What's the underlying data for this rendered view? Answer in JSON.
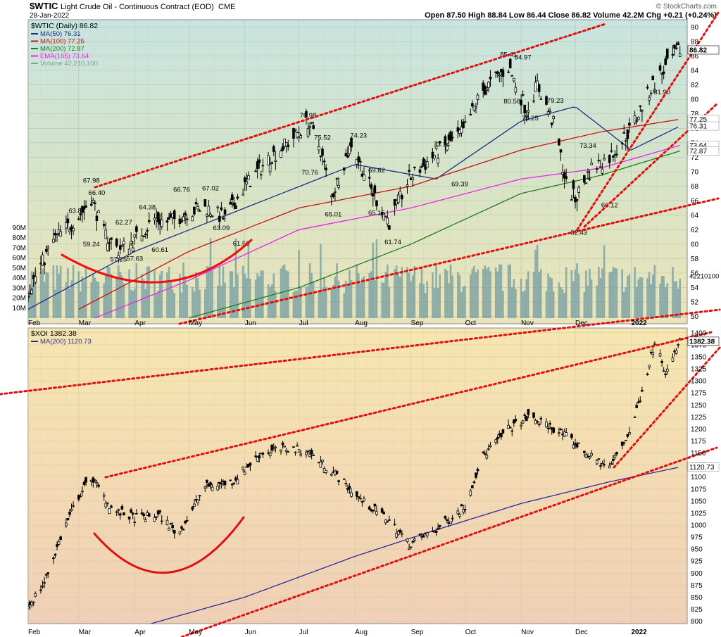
{
  "header": {
    "symbol": "$WTIC",
    "name": "Light Crude Oil - Continuous Contract (EOD)",
    "exchange": "CME",
    "date": "28-Jan-2022",
    "watermark": "© StockCharts.com",
    "ohlc": "Open 87.50  High 88.84  Low 86.44  Close 86.82  Volume 42.2M  Chg +0.21 (+0.24%)",
    "ohlc_arrow": "▲"
  },
  "colors": {
    "ma50": "#1a2f8a",
    "ma100": "#cc1111",
    "ma200": "#1f7a1f",
    "ema165": "#ee22ee",
    "volume": "#7fa3a3",
    "price": "#000000",
    "trend": "#e01010",
    "arc": "#ee1111",
    "xoi_ma200": "#2a2aa0"
  },
  "x_labels": [
    "Feb",
    "Mar",
    "Apr",
    "May",
    "Jun",
    "Jul",
    "Aug",
    "Sep",
    "Oct",
    "Nov",
    "Dec",
    "2022"
  ],
  "chart_data": [
    {
      "type": "line",
      "title": "$WTIC (Daily) 86.82",
      "legend": [
        {
          "label": "MA(50) 76.31",
          "color": "#1a2f8a"
        },
        {
          "label": "MA(100) 77.25",
          "color": "#cc1111"
        },
        {
          "label": "MA(200) 72.87",
          "color": "#1f7a1f"
        },
        {
          "label": "EMA(165) 73.64",
          "color": "#ee22ee"
        },
        {
          "label": "Volume 42,210,100",
          "color": "#7fa3a3"
        }
      ],
      "y_ticks": [
        50,
        52,
        54,
        56,
        58,
        60,
        62,
        64,
        66,
        68,
        70,
        72,
        74,
        76,
        78,
        80,
        82,
        84,
        86,
        88,
        90
      ],
      "ylim": [
        49,
        91
      ],
      "volume_ticks": [
        "10M",
        "20M",
        "30M",
        "40M",
        "50M",
        "60M",
        "70M",
        "80M",
        "90M"
      ],
      "volume_last_label": "42210100",
      "right_labels": [
        {
          "text": "86.82",
          "value": 86.82
        },
        {
          "text": "77.25",
          "value": 77.25
        },
        {
          "text": "76.31",
          "value": 76.31
        },
        {
          "text": "73.64",
          "value": 73.64
        },
        {
          "text": "72.87",
          "value": 72.87
        }
      ],
      "x": [
        "2021-02-01",
        "2021-02-15",
        "2021-03-01",
        "2021-03-08",
        "2021-03-15",
        "2021-03-23",
        "2021-04-01",
        "2021-04-12",
        "2021-04-20",
        "2021-05-01",
        "2021-05-11",
        "2021-05-21",
        "2021-06-01",
        "2021-06-15",
        "2021-06-25",
        "2021-07-06",
        "2021-07-13",
        "2021-07-19",
        "2021-07-30",
        "2021-08-10",
        "2021-08-20",
        "2021-08-31",
        "2021-09-15",
        "2021-09-30",
        "2021-10-10",
        "2021-10-25",
        "2021-11-04",
        "2021-11-10",
        "2021-11-20",
        "2021-11-26",
        "2021-12-01",
        "2021-12-10",
        "2021-12-20",
        "2022-01-01",
        "2022-01-13",
        "2022-01-25",
        "2022-01-28"
      ],
      "close": [
        53.5,
        60.5,
        63.8,
        66.4,
        61.5,
        59.2,
        60.6,
        63.5,
        63.0,
        64.5,
        65.0,
        63.5,
        68.0,
        72.0,
        74.0,
        76.9,
        73.0,
        66.5,
        74.0,
        67.5,
        63.0,
        69.0,
        72.5,
        75.5,
        81.0,
        84.5,
        78.5,
        82.0,
        76.0,
        68.2,
        66.2,
        70.5,
        72.0,
        76.0,
        82.0,
        86.0,
        86.82
      ],
      "series": [
        {
          "name": "MA(50)",
          "x": [
            "2021-02-01",
            "2021-04-01",
            "2021-06-01",
            "2021-08-01",
            "2021-09-15",
            "2021-11-01",
            "2021-12-01",
            "2022-01-01",
            "2022-01-28"
          ],
          "values": [
            51,
            59,
            65,
            71,
            69,
            77,
            79,
            73,
            76.31
          ]
        },
        {
          "name": "MA(100)",
          "x": [
            "2021-03-01",
            "2021-05-01",
            "2021-07-01",
            "2021-09-01",
            "2021-11-01",
            "2021-12-15",
            "2022-01-28"
          ],
          "values": [
            51,
            59,
            65,
            68,
            73,
            75.5,
            77.25
          ]
        },
        {
          "name": "EMA(165)",
          "x": [
            "2021-03-10",
            "2021-05-01",
            "2021-07-01",
            "2021-09-01",
            "2021-11-01",
            "2021-12-15",
            "2022-01-28"
          ],
          "values": [
            49.8,
            55,
            62,
            65,
            69,
            70.5,
            73.64
          ]
        },
        {
          "name": "MA(200)",
          "x": [
            "2021-05-01",
            "2021-07-01",
            "2021-09-01",
            "2021-11-01",
            "2021-12-15",
            "2022-01-28"
          ],
          "values": [
            49.8,
            54,
            60,
            67,
            69.5,
            72.87
          ]
        }
      ],
      "annotations": [
        {
          "text": "63.81",
          "x": "2021-02-28",
          "y": 64.6
        },
        {
          "text": "67.98",
          "x": "2021-03-08",
          "y": 68.8
        },
        {
          "text": "66.40",
          "x": "2021-03-11",
          "y": 67.1
        },
        {
          "text": "59.24",
          "x": "2021-03-08",
          "y": 60.0
        },
        {
          "text": "57.25",
          "x": "2021-03-23",
          "y": 57.9
        },
        {
          "text": "62.27",
          "x": "2021-03-26",
          "y": 63.0
        },
        {
          "text": "57.63",
          "x": "2021-04-01",
          "y": 58.0
        },
        {
          "text": "64.38",
          "x": "2021-04-08",
          "y": 65.1
        },
        {
          "text": "60.61",
          "x": "2021-04-15",
          "y": 59.2
        },
        {
          "text": "66.76",
          "x": "2021-04-27",
          "y": 67.5
        },
        {
          "text": "67.02",
          "x": "2021-05-13",
          "y": 67.7
        },
        {
          "text": "63.09",
          "x": "2021-05-19",
          "y": 62.2
        },
        {
          "text": "61.56",
          "x": "2021-05-30",
          "y": 60.1
        },
        {
          "text": "76.98",
          "x": "2021-07-06",
          "y": 77.8
        },
        {
          "text": "75.52",
          "x": "2021-07-14",
          "y": 74.7
        },
        {
          "text": "70.76",
          "x": "2021-07-07",
          "y": 69.9
        },
        {
          "text": "65.01",
          "x": "2021-07-20",
          "y": 64.1
        },
        {
          "text": "74.23",
          "x": "2021-08-03",
          "y": 75.0
        },
        {
          "text": "69.62",
          "x": "2021-08-13",
          "y": 70.2
        },
        {
          "text": "65.15",
          "x": "2021-08-13",
          "y": 64.3
        },
        {
          "text": "61.74",
          "x": "2021-08-22",
          "y": 60.3
        },
        {
          "text": "73.14",
          "x": "2021-09-18",
          "y": 73.8
        },
        {
          "text": "69.39",
          "x": "2021-09-28",
          "y": 68.3
        },
        {
          "text": "85.41",
          "x": "2021-10-25",
          "y": 86.2
        },
        {
          "text": "84.97",
          "x": "2021-11-02",
          "y": 85.8
        },
        {
          "text": "80.58",
          "x": "2021-10-27",
          "y": 79.7
        },
        {
          "text": "78.25",
          "x": "2021-11-06",
          "y": 77.4
        },
        {
          "text": "79.23",
          "x": "2021-11-20",
          "y": 79.8
        },
        {
          "text": "73.34",
          "x": "2021-12-08",
          "y": 73.6
        },
        {
          "text": "66.12",
          "x": "2021-12-20",
          "y": 65.4
        },
        {
          "text": "62.43",
          "x": "2021-12-03",
          "y": 61.6
        },
        {
          "text": "81.90",
          "x": "2022-01-18",
          "y": 81.0
        }
      ],
      "xlim": [
        "2021-02-01",
        "2022-02-01"
      ]
    },
    {
      "type": "line",
      "title": "$XOI 1382.38",
      "legend": [
        {
          "label": "MA(200) 1120.73",
          "color": "#2a2aa0"
        }
      ],
      "y_ticks": [
        800,
        825,
        850,
        875,
        900,
        925,
        950,
        975,
        1000,
        1025,
        1050,
        1075,
        1100,
        1125,
        1150,
        1175,
        1200,
        1225,
        1250,
        1275,
        1300,
        1325,
        1350,
        1375,
        1400
      ],
      "ylim": [
        795,
        1410
      ],
      "right_labels": [
        {
          "text": "1382.38",
          "value": 1382.38
        },
        {
          "text": "1120.73",
          "value": 1120.73
        }
      ],
      "x": [
        "2021-02-01",
        "2021-02-10",
        "2021-02-20",
        "2021-03-01",
        "2021-03-08",
        "2021-03-20",
        "2021-04-01",
        "2021-04-15",
        "2021-04-25",
        "2021-05-10",
        "2021-05-25",
        "2021-06-10",
        "2021-06-25",
        "2021-07-05",
        "2021-07-20",
        "2021-08-05",
        "2021-08-20",
        "2021-08-31",
        "2021-09-15",
        "2021-10-01",
        "2021-10-10",
        "2021-10-25",
        "2021-11-05",
        "2021-11-20",
        "2021-12-01",
        "2021-12-10",
        "2021-12-20",
        "2022-01-01",
        "2022-01-10",
        "2022-01-15",
        "2022-01-20",
        "2022-01-28"
      ],
      "close": [
        830,
        880,
        985,
        1060,
        1100,
        1030,
        1015,
        1020,
        980,
        1080,
        1090,
        1150,
        1160,
        1155,
        1110,
        1050,
        1010,
        960,
        990,
        1040,
        1140,
        1200,
        1225,
        1200,
        1170,
        1140,
        1120,
        1200,
        1320,
        1400,
        1310,
        1382.38
      ],
      "series": [
        {
          "name": "MA(200)",
          "x": [
            "2021-04-10",
            "2021-06-01",
            "2021-08-01",
            "2021-09-15",
            "2021-11-01",
            "2021-12-20",
            "2022-01-28"
          ],
          "values": [
            795,
            850,
            935,
            990,
            1045,
            1090,
            1120.73
          ]
        }
      ],
      "xlim": [
        "2021-02-01",
        "2022-02-01"
      ]
    }
  ]
}
